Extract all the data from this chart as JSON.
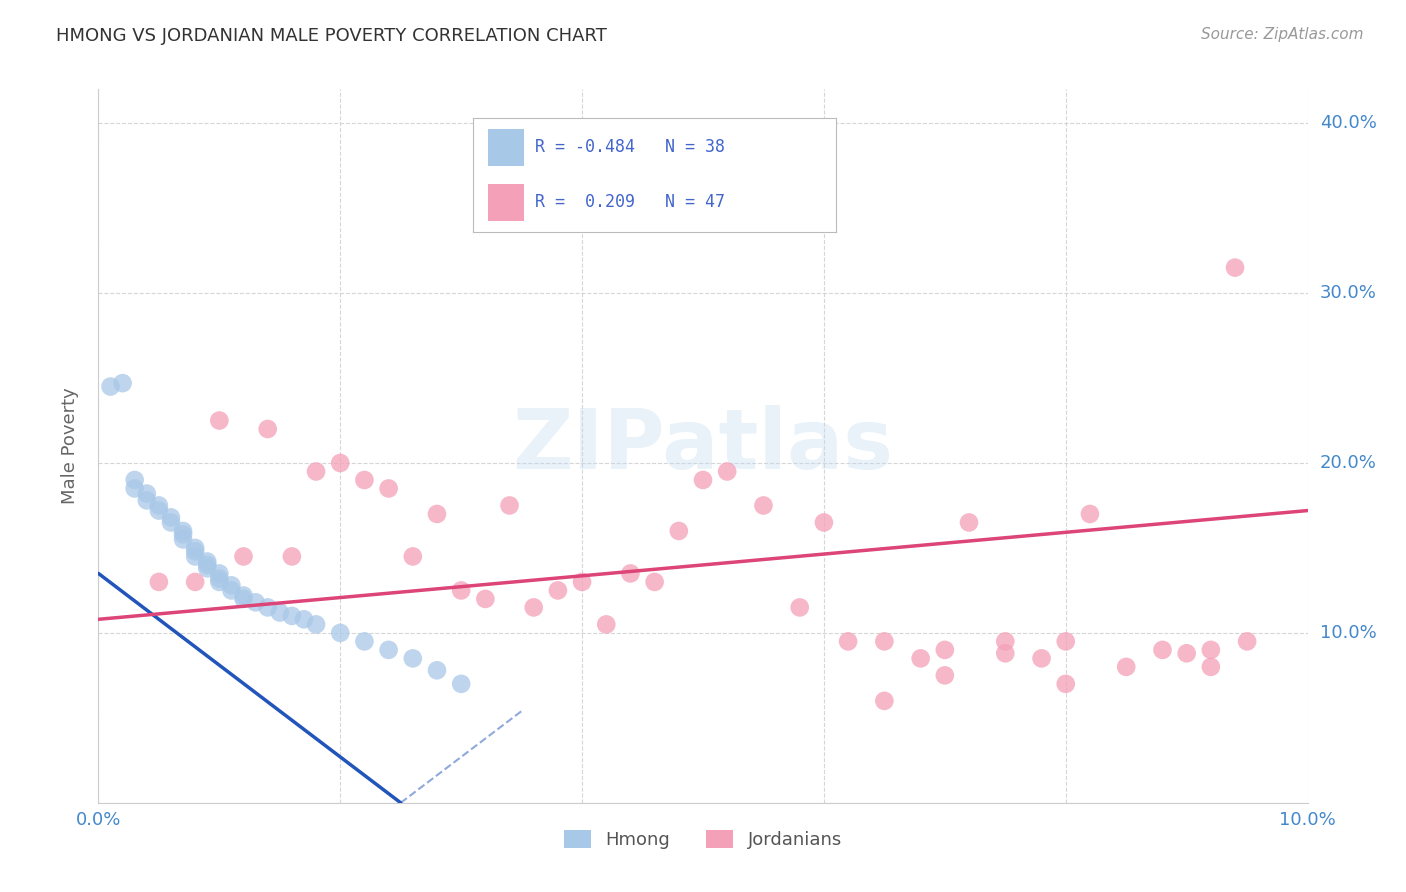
{
  "title": "HMONG VS JORDANIAN MALE POVERTY CORRELATION CHART",
  "source": "Source: ZipAtlas.com",
  "ylabel": "Male Poverty",
  "xlim": [
    0.0,
    0.1
  ],
  "ylim": [
    0.0,
    0.42
  ],
  "hmong_R": -0.484,
  "hmong_N": 38,
  "jordan_R": 0.209,
  "jordan_N": 47,
  "hmong_color": "#a8c8e8",
  "jordan_color": "#f4a0b8",
  "hmong_line_color": "#2255bb",
  "jordan_line_color": "#dd4477",
  "watermark": "ZIPatlas",
  "legend_text_color": "#4466cc",
  "tick_color": "#4488cc",
  "grid_color": "#cccccc",
  "hmong_x": [
    0.001,
    0.002,
    0.003,
    0.003,
    0.004,
    0.004,
    0.005,
    0.005,
    0.006,
    0.006,
    0.007,
    0.007,
    0.007,
    0.008,
    0.008,
    0.008,
    0.009,
    0.009,
    0.009,
    0.01,
    0.01,
    0.01,
    0.011,
    0.011,
    0.012,
    0.012,
    0.013,
    0.014,
    0.015,
    0.016,
    0.017,
    0.018,
    0.02,
    0.022,
    0.024,
    0.026,
    0.028,
    0.03
  ],
  "hmong_y": [
    0.245,
    0.247,
    0.19,
    0.185,
    0.182,
    0.178,
    0.175,
    0.172,
    0.168,
    0.165,
    0.16,
    0.158,
    0.155,
    0.15,
    0.148,
    0.145,
    0.142,
    0.14,
    0.138,
    0.135,
    0.132,
    0.13,
    0.128,
    0.125,
    0.122,
    0.12,
    0.118,
    0.115,
    0.112,
    0.11,
    0.108,
    0.105,
    0.1,
    0.095,
    0.09,
    0.085,
    0.078,
    0.07
  ],
  "jordan_x": [
    0.005,
    0.008,
    0.01,
    0.012,
    0.014,
    0.016,
    0.018,
    0.02,
    0.022,
    0.024,
    0.026,
    0.028,
    0.03,
    0.032,
    0.034,
    0.036,
    0.038,
    0.04,
    0.042,
    0.044,
    0.046,
    0.048,
    0.05,
    0.052,
    0.055,
    0.058,
    0.06,
    0.062,
    0.065,
    0.068,
    0.07,
    0.072,
    0.075,
    0.078,
    0.08,
    0.082,
    0.085,
    0.088,
    0.09,
    0.092,
    0.094,
    0.095,
    0.092,
    0.08,
    0.075,
    0.07,
    0.065
  ],
  "jordan_y": [
    0.13,
    0.13,
    0.225,
    0.145,
    0.22,
    0.145,
    0.195,
    0.2,
    0.19,
    0.185,
    0.145,
    0.17,
    0.125,
    0.12,
    0.175,
    0.115,
    0.125,
    0.13,
    0.105,
    0.135,
    0.13,
    0.16,
    0.19,
    0.195,
    0.175,
    0.115,
    0.165,
    0.095,
    0.095,
    0.085,
    0.09,
    0.165,
    0.095,
    0.085,
    0.095,
    0.17,
    0.08,
    0.09,
    0.088,
    0.09,
    0.315,
    0.095,
    0.08,
    0.07,
    0.088,
    0.075,
    0.06
  ],
  "hmong_line_x0": 0.0,
  "hmong_line_x1": 0.025,
  "hmong_line_y0": 0.135,
  "hmong_line_y1": 0.0,
  "jordan_line_x0": 0.0,
  "jordan_line_x1": 0.1,
  "jordan_line_y0": 0.108,
  "jordan_line_y1": 0.172
}
